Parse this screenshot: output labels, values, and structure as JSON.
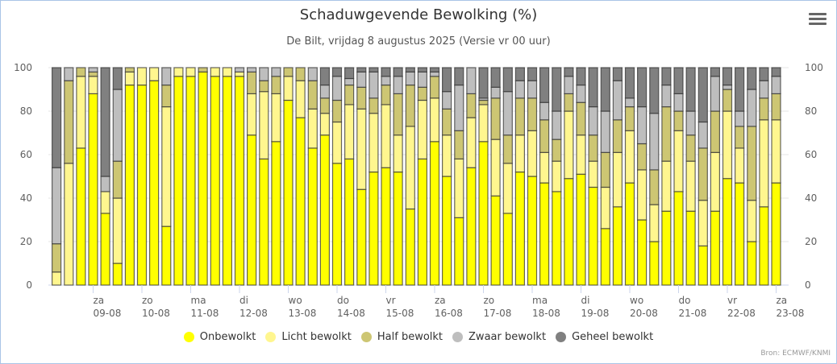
{
  "header": {
    "title": "Schaduwgevende Bewolking (%)",
    "subtitle": "De Bilt, vrijdag 8 augustus 2025 (Versie vr 00 uur)",
    "menu_icon": "hamburger-menu-icon"
  },
  "credits": "Bron: ECMWF/KNMI",
  "chart_data": {
    "type": "bar",
    "stacked": true,
    "title": "Schaduwgevende Bewolking (%)",
    "subtitle": "De Bilt, vrijdag 8 augustus 2025 (Versie vr 00 uur)",
    "xlabel": "",
    "ylabel": "",
    "ylim": [
      0,
      100
    ],
    "yticks": [
      0,
      20,
      40,
      60,
      80,
      100
    ],
    "y_axis_both_sides": true,
    "grid": true,
    "legend_position": "bottom",
    "interval": "6-hourly",
    "first_bar_offset_days": -0.75,
    "xticks": [
      {
        "day": "za",
        "date": "09-08"
      },
      {
        "day": "zo",
        "date": "10-08"
      },
      {
        "day": "ma",
        "date": "11-08"
      },
      {
        "day": "di",
        "date": "12-08"
      },
      {
        "day": "wo",
        "date": "13-08"
      },
      {
        "day": "do",
        "date": "14-08"
      },
      {
        "day": "vr",
        "date": "15-08"
      },
      {
        "day": "za",
        "date": "16-08"
      },
      {
        "day": "zo",
        "date": "17-08"
      },
      {
        "day": "ma",
        "date": "18-08"
      },
      {
        "day": "di",
        "date": "19-08"
      },
      {
        "day": "wo",
        "date": "20-08"
      },
      {
        "day": "do",
        "date": "21-08"
      },
      {
        "day": "vr",
        "date": "22-08"
      },
      {
        "day": "za",
        "date": "23-08"
      }
    ],
    "series": [
      {
        "name": "Onbewolkt",
        "color": "#ffff00",
        "values": [
          0,
          0,
          63,
          88,
          33,
          10,
          92,
          92,
          94,
          27,
          96,
          96,
          98,
          96,
          96,
          96,
          69,
          58,
          66,
          85,
          77,
          63,
          69,
          56,
          58,
          44,
          52,
          54,
          52,
          35,
          58,
          66,
          50,
          31,
          54,
          66,
          41,
          33,
          52,
          50,
          47,
          43,
          49,
          51,
          45,
          26,
          36,
          47,
          30,
          20,
          34,
          43,
          34,
          18,
          34,
          49,
          47,
          20,
          36,
          47
        ]
      },
      {
        "name": "Licht bewolkt",
        "color": "#fff68f",
        "values": [
          6,
          56,
          33,
          8,
          10,
          30,
          6,
          8,
          6,
          55,
          4,
          4,
          0,
          4,
          4,
          2,
          19,
          31,
          22,
          11,
          17,
          18,
          10,
          19,
          25,
          37,
          27,
          29,
          17,
          38,
          27,
          20,
          19,
          27,
          23,
          17,
          26,
          23,
          17,
          21,
          14,
          14,
          31,
          18,
          12,
          19,
          25,
          24,
          23,
          17,
          23,
          28,
          23,
          21,
          27,
          31,
          16,
          19,
          40,
          29
        ]
      },
      {
        "name": "Half bewolkt",
        "color": "#cdc673",
        "values": [
          13,
          38,
          4,
          2,
          0,
          17,
          2,
          0,
          0,
          10,
          0,
          0,
          2,
          0,
          0,
          0,
          10,
          5,
          8,
          4,
          6,
          13,
          7,
          10,
          9,
          10,
          7,
          9,
          19,
          19,
          6,
          10,
          12,
          13,
          11,
          2,
          19,
          13,
          17,
          15,
          15,
          10,
          8,
          15,
          12,
          16,
          15,
          11,
          12,
          16,
          25,
          9,
          12,
          24,
          19,
          10,
          10,
          34,
          10,
          12
        ]
      },
      {
        "name": "Zwaar bewolkt",
        "color": "#bebebe",
        "values": [
          35,
          6,
          0,
          2,
          7,
          33,
          0,
          0,
          0,
          8,
          0,
          0,
          0,
          0,
          0,
          2,
          2,
          6,
          4,
          0,
          0,
          6,
          6,
          11,
          3,
          7,
          12,
          4,
          8,
          6,
          7,
          2,
          8,
          21,
          12,
          1,
          5,
          20,
          8,
          8,
          8,
          13,
          8,
          8,
          13,
          19,
          18,
          4,
          17,
          26,
          10,
          8,
          11,
          12,
          16,
          2,
          7,
          17,
          8,
          8
        ]
      },
      {
        "name": "Geheel bewolkt",
        "color": "#808080",
        "values": [
          46,
          0,
          0,
          0,
          50,
          10,
          0,
          0,
          0,
          0,
          0,
          0,
          0,
          0,
          0,
          0,
          0,
          0,
          0,
          0,
          0,
          0,
          8,
          4,
          5,
          2,
          2,
          4,
          4,
          2,
          2,
          2,
          11,
          8,
          0,
          14,
          9,
          11,
          6,
          6,
          16,
          20,
          4,
          8,
          18,
          20,
          6,
          14,
          18,
          21,
          8,
          12,
          20,
          25,
          4,
          8,
          20,
          10,
          6,
          4
        ]
      }
    ]
  }
}
